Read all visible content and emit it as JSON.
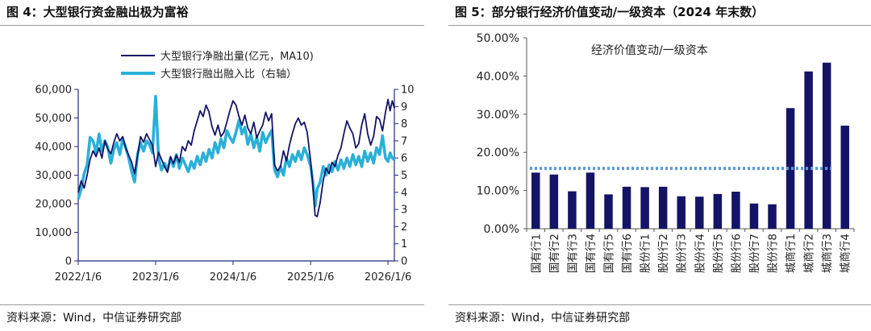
{
  "left": {
    "title": "图 4：大型银行资金融出极为富裕",
    "source": "资料来源：Wind，中信证券研究部"
  },
  "right": {
    "title": "图 5：部分银行经济价值变动/一级资本（2024 年末数）",
    "source": "资料来源：Wind，中信证券研究部"
  },
  "chart_data": [
    {
      "type": "line",
      "title": "",
      "x_tick_labels": [
        "2022/1/6",
        "2023/1/6",
        "2024/1/6",
        "2025/1/6",
        "2026/1/6"
      ],
      "x_range": [
        "2022/1/6",
        "2026/2/5"
      ],
      "y_left": {
        "range": [
          0,
          60000
        ],
        "ticks": [
          "0",
          "10,000",
          "20,000",
          "30,000",
          "40,000",
          "50,000",
          "60,000"
        ]
      },
      "y_right": {
        "range": [
          0,
          10
        ],
        "ticks": [
          "0",
          "1",
          "2",
          "3",
          "4",
          "5",
          "6",
          "7",
          "8",
          "9",
          "10"
        ]
      },
      "legend_position": "top-center",
      "series": [
        {
          "name": "大型银行净融出量(亿元，MA10)",
          "axis": "left",
          "color": "#141466",
          "points": [
            [
              "2022/1/6",
              24000
            ],
            [
              "2022/1/20",
              28000
            ],
            [
              "2022/2/3",
              25500
            ],
            [
              "2022/2/17",
              30000
            ],
            [
              "2022/3/3",
              35500
            ],
            [
              "2022/3/17",
              38500
            ],
            [
              "2022/3/31",
              36500
            ],
            [
              "2022/4/14",
              39500
            ],
            [
              "2022/4/28",
              36000
            ],
            [
              "2022/5/12",
              42000
            ],
            [
              "2022/5/26",
              39000
            ],
            [
              "2022/6/9",
              37500
            ],
            [
              "2022/6/23",
              41500
            ],
            [
              "2022/7/7",
              44500
            ],
            [
              "2022/7/21",
              42000
            ],
            [
              "2022/8/4",
              43500
            ],
            [
              "2022/8/18",
              39500
            ],
            [
              "2022/9/1",
              37000
            ],
            [
              "2022/9/15",
              34500
            ],
            [
              "2022/9/29",
              30500
            ],
            [
              "2022/10/13",
              37000
            ],
            [
              "2022/10/27",
              43500
            ],
            [
              "2022/11/10",
              41500
            ],
            [
              "2022/11/24",
              44500
            ],
            [
              "2022/12/8",
              42500
            ],
            [
              "2022/12/22",
              40500
            ],
            [
              "2023/1/6",
              33000
            ],
            [
              "2023/1/20",
              38000
            ],
            [
              "2023/2/3",
              35500
            ],
            [
              "2023/2/17",
              33000
            ],
            [
              "2023/3/3",
              31000
            ],
            [
              "2023/3/17",
              36500
            ],
            [
              "2023/3/31",
              34000
            ],
            [
              "2023/4/14",
              37000
            ],
            [
              "2023/4/28",
              34500
            ],
            [
              "2023/5/12",
              40000
            ],
            [
              "2023/5/26",
              38500
            ],
            [
              "2023/6/9",
              42000
            ],
            [
              "2023/6/23",
              40500
            ],
            [
              "2023/7/7",
              45500
            ],
            [
              "2023/7/21",
              49000
            ],
            [
              "2023/8/4",
              52500
            ],
            [
              "2023/8/18",
              50500
            ],
            [
              "2023/9/1",
              54500
            ],
            [
              "2023/9/15",
              52000
            ],
            [
              "2023/9/29",
              47000
            ],
            [
              "2023/10/13",
              44000
            ],
            [
              "2023/10/27",
              47500
            ],
            [
              "2023/11/10",
              43500
            ],
            [
              "2023/11/24",
              45000
            ],
            [
              "2023/12/8",
              48500
            ],
            [
              "2023/12/22",
              52500
            ],
            [
              "2024/1/6",
              56000
            ],
            [
              "2024/1/20",
              54500
            ],
            [
              "2024/2/3",
              50500
            ],
            [
              "2024/2/17",
              47500
            ],
            [
              "2024/3/2",
              51000
            ],
            [
              "2024/3/16",
              46500
            ],
            [
              "2024/3/30",
              44500
            ],
            [
              "2024/4/13",
              48500
            ],
            [
              "2024/4/27",
              43000
            ],
            [
              "2024/5/11",
              45500
            ],
            [
              "2024/5/25",
              47500
            ],
            [
              "2024/6/8",
              52000
            ],
            [
              "2024/6/22",
              49000
            ],
            [
              "2024/7/6",
              51500
            ],
            [
              "2024/7/20",
              33500
            ],
            [
              "2024/8/3",
              31500
            ],
            [
              "2024/8/17",
              33000
            ],
            [
              "2024/8/31",
              38500
            ],
            [
              "2024/9/14",
              35000
            ],
            [
              "2024/9/28",
              40500
            ],
            [
              "2024/10/12",
              44500
            ],
            [
              "2024/10/26",
              48000
            ],
            [
              "2024/11/9",
              50000
            ],
            [
              "2024/11/23",
              47500
            ],
            [
              "2024/12/7",
              48500
            ],
            [
              "2024/12/21",
              45000
            ],
            [
              "2025/1/6",
              35000
            ],
            [
              "2025/1/17",
              26000
            ],
            [
              "2025/1/27",
              16000
            ],
            [
              "2025/2/6",
              15500
            ],
            [
              "2025/2/20",
              20500
            ],
            [
              "2025/3/6",
              28000
            ],
            [
              "2025/3/20",
              32500
            ],
            [
              "2025/4/3",
              30500
            ],
            [
              "2025/4/17",
              34500
            ],
            [
              "2025/5/1",
              33000
            ],
            [
              "2025/5/15",
              37000
            ],
            [
              "2025/5/29",
              39500
            ],
            [
              "2025/6/12",
              44500
            ],
            [
              "2025/6/26",
              49000
            ],
            [
              "2025/7/10",
              46500
            ],
            [
              "2025/7/24",
              44500
            ],
            [
              "2025/8/7",
              39500
            ],
            [
              "2025/8/21",
              41000
            ],
            [
              "2025/9/4",
              47500
            ],
            [
              "2025/9/18",
              51500
            ],
            [
              "2025/10/2",
              44500
            ],
            [
              "2025/10/16",
              40500
            ],
            [
              "2025/10/30",
              43500
            ],
            [
              "2025/11/13",
              50500
            ],
            [
              "2025/11/27",
              49500
            ],
            [
              "2025/12/11",
              45500
            ],
            [
              "2025/12/25",
              52000
            ],
            [
              "2026/1/6",
              56500
            ],
            [
              "2026/1/16",
              52500
            ],
            [
              "2026/1/26",
              56000
            ],
            [
              "2026/2/5",
              53500
            ]
          ]
        },
        {
          "name": "大型银行融出融入比（右轴）",
          "axis": "right",
          "color": "#2ab0d8",
          "points": [
            [
              "2022/1/6",
              3.6
            ],
            [
              "2022/1/20",
              4.2
            ],
            [
              "2022/2/3",
              5.1
            ],
            [
              "2022/2/17",
              5.6
            ],
            [
              "2022/3/3",
              7.2
            ],
            [
              "2022/3/17",
              7.0
            ],
            [
              "2022/3/31",
              6.3
            ],
            [
              "2022/4/14",
              7.4
            ],
            [
              "2022/4/28",
              6.4
            ],
            [
              "2022/5/12",
              7.0
            ],
            [
              "2022/5/26",
              6.6
            ],
            [
              "2022/6/9",
              5.7
            ],
            [
              "2022/6/23",
              6.5
            ],
            [
              "2022/7/7",
              6.9
            ],
            [
              "2022/7/21",
              6.2
            ],
            [
              "2022/8/4",
              7.1
            ],
            [
              "2022/8/18",
              6.6
            ],
            [
              "2022/9/1",
              6.0
            ],
            [
              "2022/9/15",
              5.2
            ],
            [
              "2022/9/29",
              4.6
            ],
            [
              "2022/10/13",
              6.2
            ],
            [
              "2022/10/27",
              6.9
            ],
            [
              "2022/11/10",
              6.4
            ],
            [
              "2022/11/24",
              7.0
            ],
            [
              "2022/12/8",
              6.8
            ],
            [
              "2022/12/22",
              6.3
            ],
            [
              "2023/1/6",
              9.6
            ],
            [
              "2023/1/20",
              6.0
            ],
            [
              "2023/2/3",
              5.3
            ],
            [
              "2023/2/17",
              5.7
            ],
            [
              "2023/3/3",
              5.3
            ],
            [
              "2023/3/17",
              6.0
            ],
            [
              "2023/3/31",
              5.5
            ],
            [
              "2023/4/14",
              6.2
            ],
            [
              "2023/4/28",
              5.4
            ],
            [
              "2023/5/12",
              6.0
            ],
            [
              "2023/5/26",
              5.6
            ],
            [
              "2023/6/9",
              5.2
            ],
            [
              "2023/6/23",
              5.8
            ],
            [
              "2023/7/7",
              5.4
            ],
            [
              "2023/7/21",
              6.1
            ],
            [
              "2023/8/4",
              5.6
            ],
            [
              "2023/8/18",
              6.3
            ],
            [
              "2023/9/1",
              5.8
            ],
            [
              "2023/9/15",
              6.5
            ],
            [
              "2023/9/29",
              6.0
            ],
            [
              "2023/10/13",
              6.9
            ],
            [
              "2023/10/27",
              6.3
            ],
            [
              "2023/11/10",
              7.1
            ],
            [
              "2023/11/24",
              6.6
            ],
            [
              "2023/12/8",
              7.6
            ],
            [
              "2023/12/22",
              7.2
            ],
            [
              "2024/1/6",
              6.9
            ],
            [
              "2024/1/20",
              7.5
            ],
            [
              "2024/2/3",
              8.2
            ],
            [
              "2024/2/17",
              7.4
            ],
            [
              "2024/3/2",
              7.8
            ],
            [
              "2024/3/16",
              6.8
            ],
            [
              "2024/3/30",
              7.4
            ],
            [
              "2024/4/13",
              6.6
            ],
            [
              "2024/4/27",
              7.2
            ],
            [
              "2024/5/11",
              6.4
            ],
            [
              "2024/5/25",
              7.5
            ],
            [
              "2024/6/8",
              6.9
            ],
            [
              "2024/6/22",
              7.3
            ],
            [
              "2024/7/6",
              7.6
            ],
            [
              "2024/7/20",
              5.3
            ],
            [
              "2024/8/3",
              4.9
            ],
            [
              "2024/8/17",
              5.5
            ],
            [
              "2024/8/31",
              5.0
            ],
            [
              "2024/9/14",
              6.0
            ],
            [
              "2024/9/28",
              5.5
            ],
            [
              "2024/10/12",
              6.2
            ],
            [
              "2024/10/26",
              5.8
            ],
            [
              "2024/11/9",
              6.4
            ],
            [
              "2024/11/23",
              5.9
            ],
            [
              "2024/12/7",
              6.6
            ],
            [
              "2024/12/21",
              6.2
            ],
            [
              "2025/1/6",
              5.5
            ],
            [
              "2025/1/17",
              4.6
            ],
            [
              "2025/1/27",
              3.2
            ],
            [
              "2025/2/6",
              4.2
            ],
            [
              "2025/2/20",
              4.6
            ],
            [
              "2025/3/6",
              5.5
            ],
            [
              "2025/3/20",
              5.0
            ],
            [
              "2025/4/3",
              5.6
            ],
            [
              "2025/4/17",
              5.2
            ],
            [
              "2025/5/1",
              5.8
            ],
            [
              "2025/5/15",
              5.3
            ],
            [
              "2025/5/29",
              5.9
            ],
            [
              "2025/6/12",
              5.4
            ],
            [
              "2025/6/26",
              6.0
            ],
            [
              "2025/7/10",
              5.5
            ],
            [
              "2025/7/24",
              6.2
            ],
            [
              "2025/8/7",
              5.6
            ],
            [
              "2025/8/21",
              6.1
            ],
            [
              "2025/9/4",
              5.5
            ],
            [
              "2025/9/18",
              6.4
            ],
            [
              "2025/10/2",
              5.8
            ],
            [
              "2025/10/16",
              6.3
            ],
            [
              "2025/10/30",
              5.7
            ],
            [
              "2025/11/13",
              6.6
            ],
            [
              "2025/11/27",
              6.2
            ],
            [
              "2025/12/11",
              7.3
            ],
            [
              "2025/12/25",
              6.0
            ],
            [
              "2026/1/6",
              5.8
            ],
            [
              "2026/1/16",
              6.3
            ],
            [
              "2026/1/26",
              6.0
            ],
            [
              "2026/2/5",
              5.9
            ]
          ]
        }
      ]
    },
    {
      "type": "bar",
      "title": "",
      "annotation": "经济价值变动/一级资本",
      "categories": [
        "国有行1",
        "国有行2",
        "国有行3",
        "国有行4",
        "国有行5",
        "国有行6",
        "股份行1",
        "股份行2",
        "股份行3",
        "股份行4",
        "股份行5",
        "股份行6",
        "股份行7",
        "股份行8",
        "城商行1",
        "城商行2",
        "城商行3",
        "城商行4"
      ],
      "values": [
        14.7,
        14.2,
        9.8,
        14.7,
        9.0,
        11.0,
        10.9,
        11.0,
        8.5,
        8.4,
        9.1,
        9.7,
        6.6,
        6.4,
        31.6,
        41.2,
        43.5,
        27.0
      ],
      "unit": "%",
      "color": "#141466",
      "reference_line": {
        "value": 15.8,
        "style": "dotted",
        "color": "#5b9bd5"
      },
      "ylim": [
        0,
        50
      ],
      "y_tick_labels": [
        "0.00%",
        "10.00%",
        "20.00%",
        "30.00%",
        "40.00%",
        "50.00%"
      ]
    }
  ]
}
